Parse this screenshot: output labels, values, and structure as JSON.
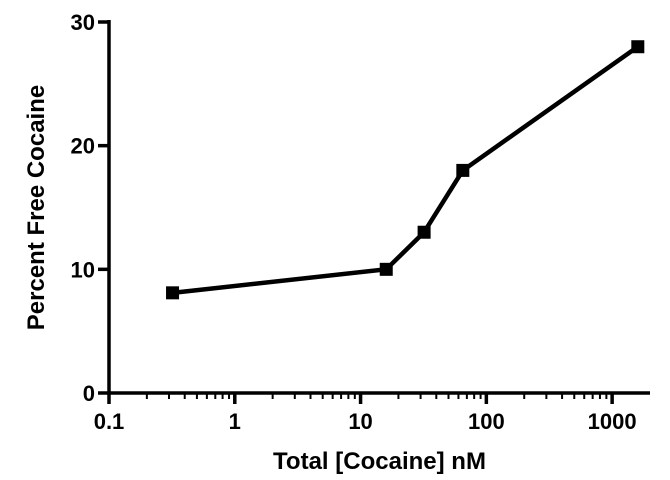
{
  "chart_data": {
    "type": "line",
    "title": "",
    "xlabel": "Total [Cocaine] nM",
    "ylabel": "Percent Free Cocaine",
    "x_scale": "log",
    "xlim": [
      0.1,
      2000
    ],
    "ylim": [
      0,
      30
    ],
    "x_ticks": [
      0.1,
      1,
      10,
      100,
      1000
    ],
    "x_tick_labels": [
      "0.1",
      "1",
      "10",
      "100",
      "1000"
    ],
    "y_ticks": [
      0,
      10,
      20,
      30
    ],
    "y_tick_labels": [
      "0",
      "10",
      "20",
      "30"
    ],
    "grid": false,
    "series": [
      {
        "x": [
          0.32,
          16,
          32,
          65,
          1600
        ],
        "y": [
          8.1,
          10.0,
          13.0,
          18.0,
          28.0
        ],
        "marker": "square",
        "color": "#000000"
      }
    ]
  }
}
